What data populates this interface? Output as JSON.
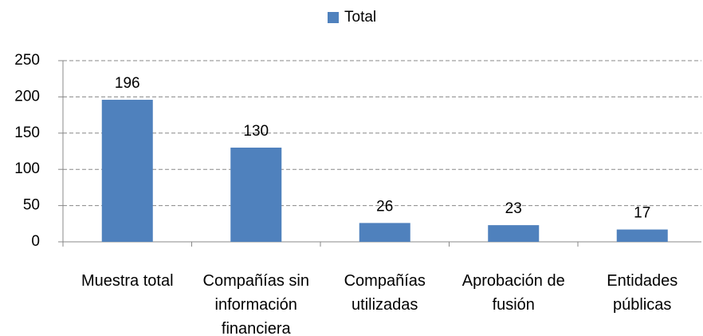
{
  "chart_data": {
    "type": "bar",
    "categories": [
      "Muestra total",
      "Compañías sin información financiera",
      "Compañías utilizadas",
      "Aprobación de fusión",
      "Entidades públicas"
    ],
    "series": [
      {
        "name": "Total",
        "color": "#4f81bd",
        "values": [
          196,
          130,
          26,
          23,
          17
        ]
      }
    ],
    "ylim": [
      0,
      250
    ],
    "yticks": [
      0,
      50,
      100,
      150,
      200,
      250
    ],
    "grid": true,
    "legend": "top"
  }
}
